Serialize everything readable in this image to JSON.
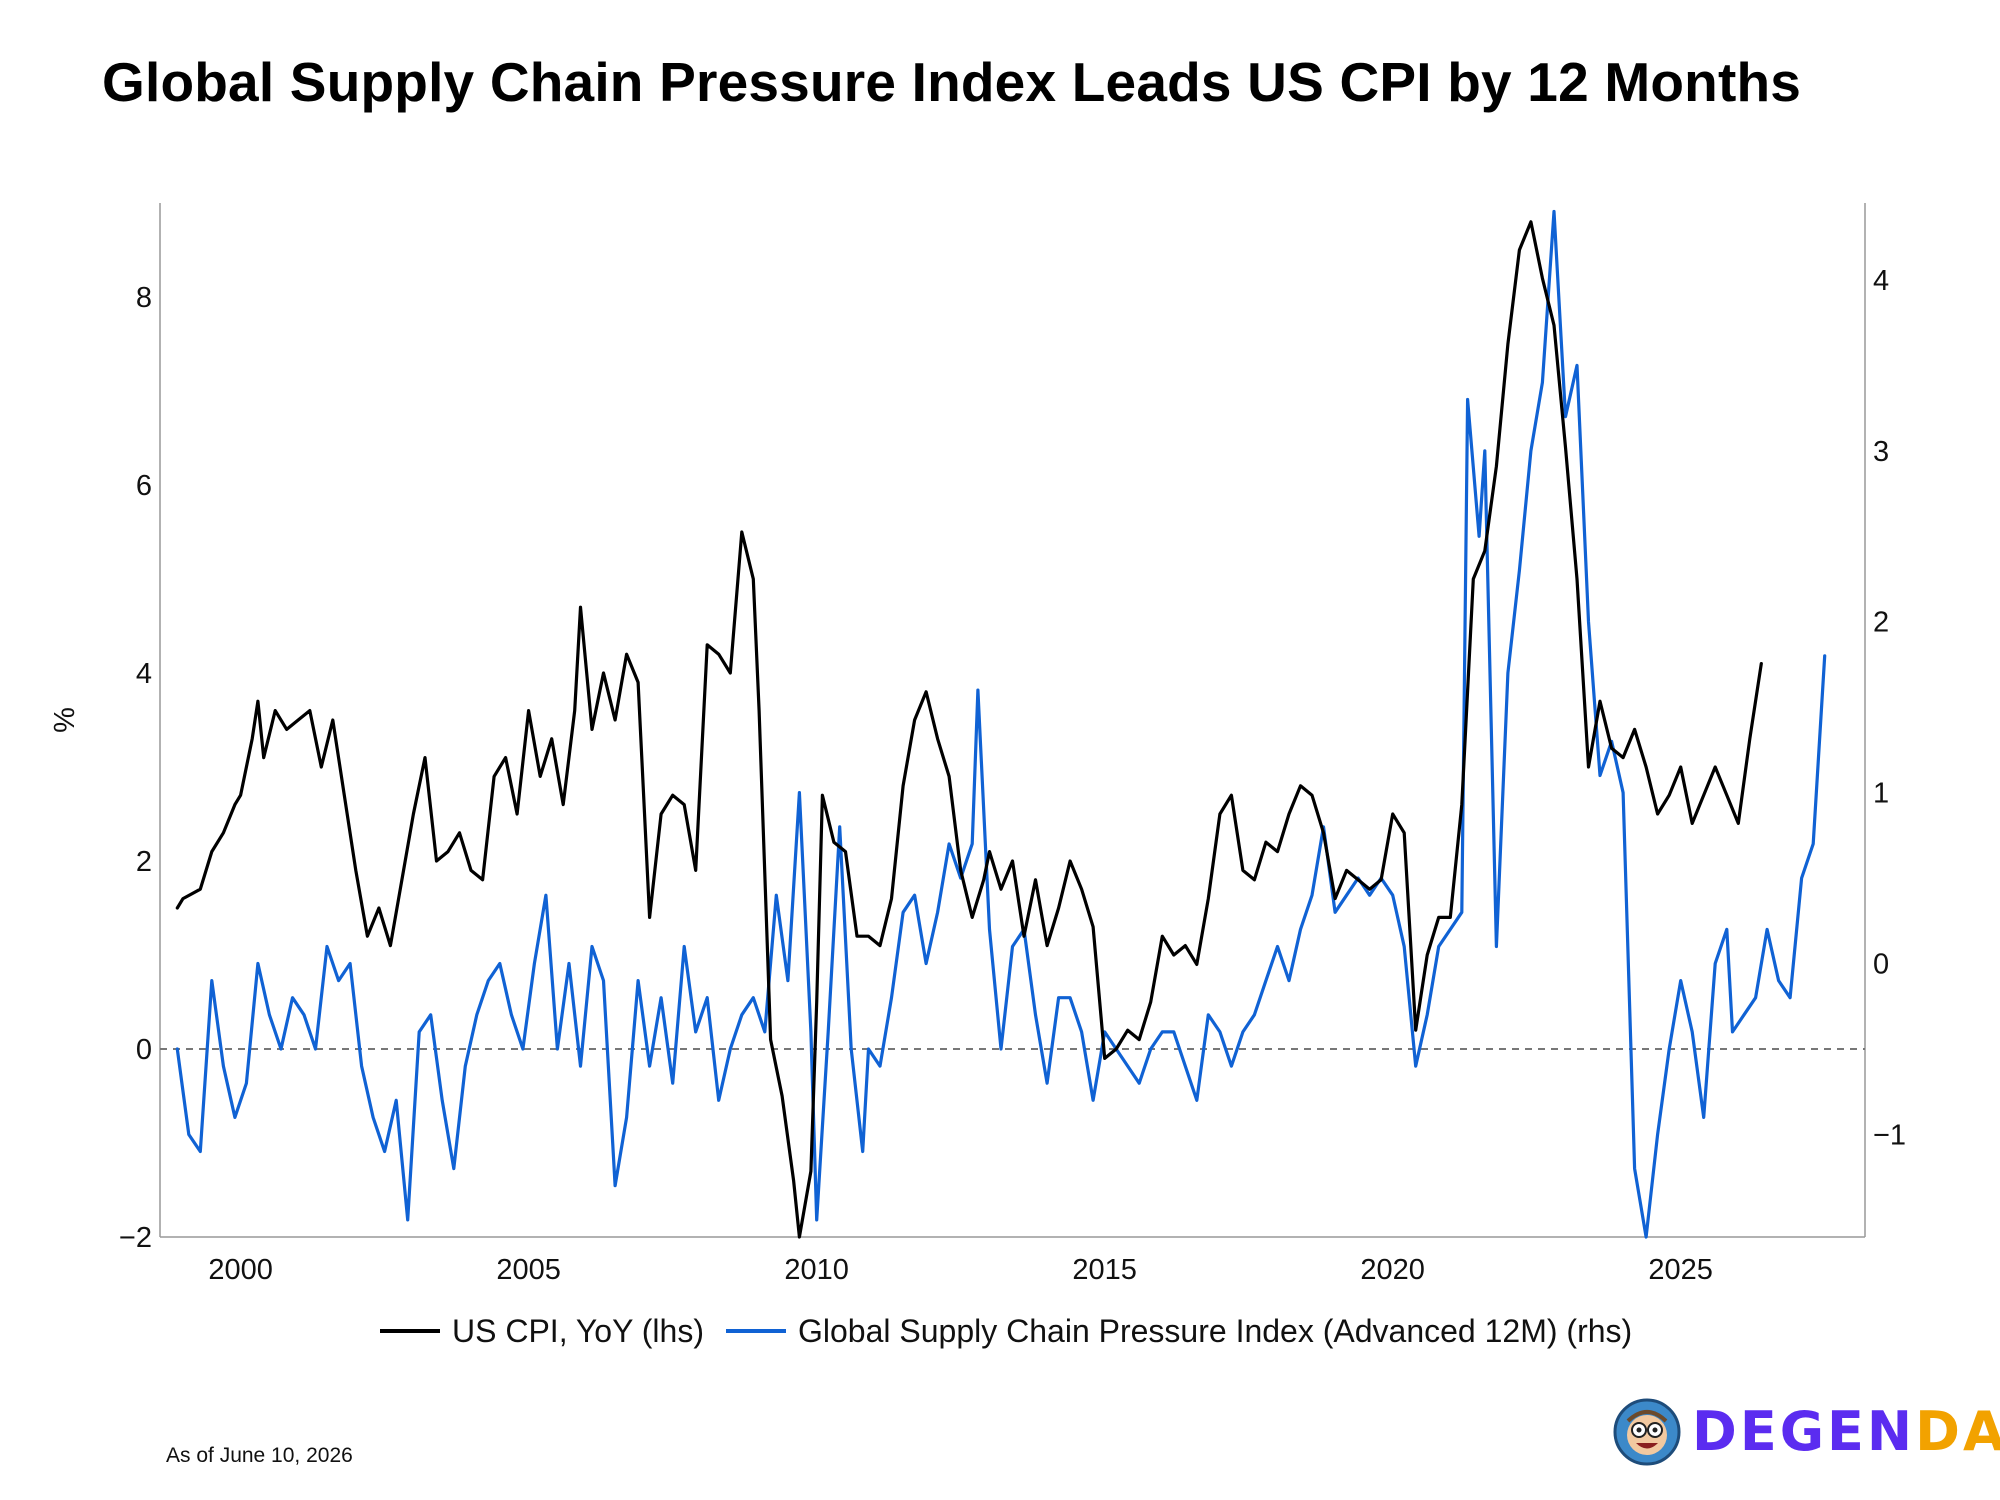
{
  "title": "Global Supply Chain Pressure Index Leads US CPI by 12 Months",
  "footnote": "As of June 10, 2026",
  "brand": {
    "part1": "DEGEN",
    "part2": "DAO!",
    "color1": "#5b2cf0",
    "color2": "#f2a200",
    "icon": "avatar-icon"
  },
  "chart_data": {
    "type": "line",
    "title": "Global Supply Chain Pressure Index Leads US CPI by 12 Months",
    "xlabel": "",
    "ylabel": "%",
    "ylabel_right": "",
    "xlim": [
      1998.6,
      2028.2
    ],
    "ylim": [
      -2,
      9
    ],
    "ylim_right": [
      -1.6,
      4.45
    ],
    "x_ticks": [
      2000,
      2005,
      2010,
      2015,
      2020,
      2025
    ],
    "y_ticks": [
      -2,
      0,
      2,
      4,
      6,
      8
    ],
    "y_ticks_right": [
      -1,
      0,
      1,
      2,
      3,
      4
    ],
    "reference_line": {
      "axis": "left",
      "y": 0,
      "style": "dashed"
    },
    "grid": false,
    "legend_position": "bottom-center",
    "series": [
      {
        "name": "US CPI, YoY (lhs)",
        "axis": "left",
        "color": "#000000",
        "points": [
          [
            1998.9,
            1.5
          ],
          [
            1999.0,
            1.6
          ],
          [
            1999.3,
            1.7
          ],
          [
            1999.5,
            2.1
          ],
          [
            1999.7,
            2.3
          ],
          [
            1999.9,
            2.6
          ],
          [
            2000.0,
            2.7
          ],
          [
            2000.2,
            3.3
          ],
          [
            2000.3,
            3.7
          ],
          [
            2000.4,
            3.1
          ],
          [
            2000.6,
            3.6
          ],
          [
            2000.8,
            3.4
          ],
          [
            2001.0,
            3.5
          ],
          [
            2001.2,
            3.6
          ],
          [
            2001.4,
            3.0
          ],
          [
            2001.6,
            3.5
          ],
          [
            2001.8,
            2.7
          ],
          [
            2002.0,
            1.9
          ],
          [
            2002.2,
            1.2
          ],
          [
            2002.4,
            1.5
          ],
          [
            2002.6,
            1.1
          ],
          [
            2002.8,
            1.8
          ],
          [
            2003.0,
            2.5
          ],
          [
            2003.2,
            3.1
          ],
          [
            2003.4,
            2.0
          ],
          [
            2003.6,
            2.1
          ],
          [
            2003.8,
            2.3
          ],
          [
            2004.0,
            1.9
          ],
          [
            2004.2,
            1.8
          ],
          [
            2004.4,
            2.9
          ],
          [
            2004.6,
            3.1
          ],
          [
            2004.8,
            2.5
          ],
          [
            2005.0,
            3.6
          ],
          [
            2005.2,
            2.9
          ],
          [
            2005.4,
            3.3
          ],
          [
            2005.6,
            2.6
          ],
          [
            2005.8,
            3.6
          ],
          [
            2005.9,
            4.7
          ],
          [
            2006.1,
            3.4
          ],
          [
            2006.3,
            4.0
          ],
          [
            2006.5,
            3.5
          ],
          [
            2006.7,
            4.2
          ],
          [
            2006.9,
            3.9
          ],
          [
            2007.1,
            1.4
          ],
          [
            2007.3,
            2.5
          ],
          [
            2007.5,
            2.7
          ],
          [
            2007.7,
            2.6
          ],
          [
            2007.9,
            1.9
          ],
          [
            2008.1,
            4.3
          ],
          [
            2008.3,
            4.2
          ],
          [
            2008.5,
            4.0
          ],
          [
            2008.7,
            5.5
          ],
          [
            2008.9,
            5.0
          ],
          [
            2009.0,
            3.6
          ],
          [
            2009.2,
            0.1
          ],
          [
            2009.4,
            -0.5
          ],
          [
            2009.6,
            -1.4
          ],
          [
            2009.7,
            -2.0
          ],
          [
            2009.9,
            -1.3
          ],
          [
            2010.0,
            0.5
          ],
          [
            2010.1,
            2.7
          ],
          [
            2010.3,
            2.2
          ],
          [
            2010.5,
            2.1
          ],
          [
            2010.7,
            1.2
          ],
          [
            2010.9,
            1.2
          ],
          [
            2011.1,
            1.1
          ],
          [
            2011.3,
            1.6
          ],
          [
            2011.5,
            2.8
          ],
          [
            2011.7,
            3.5
          ],
          [
            2011.9,
            3.8
          ],
          [
            2012.1,
            3.3
          ],
          [
            2012.3,
            2.9
          ],
          [
            2012.5,
            1.9
          ],
          [
            2012.7,
            1.4
          ],
          [
            2012.9,
            1.8
          ],
          [
            2013.0,
            2.1
          ],
          [
            2013.2,
            1.7
          ],
          [
            2013.4,
            2.0
          ],
          [
            2013.6,
            1.2
          ],
          [
            2013.8,
            1.8
          ],
          [
            2014.0,
            1.1
          ],
          [
            2014.2,
            1.5
          ],
          [
            2014.4,
            2.0
          ],
          [
            2014.6,
            1.7
          ],
          [
            2014.8,
            1.3
          ],
          [
            2015.0,
            -0.1
          ],
          [
            2015.2,
            0.0
          ],
          [
            2015.4,
            0.2
          ],
          [
            2015.6,
            0.1
          ],
          [
            2015.8,
            0.5
          ],
          [
            2016.0,
            1.2
          ],
          [
            2016.2,
            1.0
          ],
          [
            2016.4,
            1.1
          ],
          [
            2016.6,
            0.9
          ],
          [
            2016.8,
            1.6
          ],
          [
            2017.0,
            2.5
          ],
          [
            2017.2,
            2.7
          ],
          [
            2017.4,
            1.9
          ],
          [
            2017.6,
            1.8
          ],
          [
            2017.8,
            2.2
          ],
          [
            2018.0,
            2.1
          ],
          [
            2018.2,
            2.5
          ],
          [
            2018.4,
            2.8
          ],
          [
            2018.6,
            2.7
          ],
          [
            2018.8,
            2.3
          ],
          [
            2019.0,
            1.6
          ],
          [
            2019.2,
            1.9
          ],
          [
            2019.4,
            1.8
          ],
          [
            2019.6,
            1.7
          ],
          [
            2019.8,
            1.8
          ],
          [
            2020.0,
            2.5
          ],
          [
            2020.2,
            2.3
          ],
          [
            2020.4,
            0.2
          ],
          [
            2020.6,
            1.0
          ],
          [
            2020.8,
            1.4
          ],
          [
            2021.0,
            1.4
          ],
          [
            2021.2,
            2.6
          ],
          [
            2021.4,
            5.0
          ],
          [
            2021.6,
            5.3
          ],
          [
            2021.8,
            6.2
          ],
          [
            2022.0,
            7.5
          ],
          [
            2022.2,
            8.5
          ],
          [
            2022.4,
            8.8
          ],
          [
            2022.6,
            8.2
          ],
          [
            2022.8,
            7.7
          ],
          [
            2023.0,
            6.4
          ],
          [
            2023.2,
            5.0
          ],
          [
            2023.4,
            3.0
          ],
          [
            2023.6,
            3.7
          ],
          [
            2023.8,
            3.2
          ],
          [
            2024.0,
            3.1
          ],
          [
            2024.2,
            3.4
          ],
          [
            2024.4,
            3.0
          ],
          [
            2024.6,
            2.5
          ],
          [
            2024.8,
            2.7
          ],
          [
            2025.0,
            3.0
          ],
          [
            2025.2,
            2.4
          ],
          [
            2025.4,
            2.7
          ],
          [
            2025.6,
            3.0
          ],
          [
            2025.8,
            2.7
          ],
          [
            2026.0,
            2.4
          ],
          [
            2026.2,
            3.3
          ],
          [
            2026.4,
            4.1
          ]
        ]
      },
      {
        "name": "Global Supply Chain Pressure Index (Advanced 12M) (rhs)",
        "axis": "right",
        "color": "#1062d4",
        "points": [
          [
            1998.9,
            -0.5
          ],
          [
            1999.1,
            -1.0
          ],
          [
            1999.3,
            -1.1
          ],
          [
            1999.5,
            -0.1
          ],
          [
            1999.7,
            -0.6
          ],
          [
            1999.9,
            -0.9
          ],
          [
            2000.1,
            -0.7
          ],
          [
            2000.3,
            0.0
          ],
          [
            2000.5,
            -0.3
          ],
          [
            2000.7,
            -0.5
          ],
          [
            2000.9,
            -0.2
          ],
          [
            2001.1,
            -0.3
          ],
          [
            2001.3,
            -0.5
          ],
          [
            2001.5,
            0.1
          ],
          [
            2001.7,
            -0.1
          ],
          [
            2001.9,
            0.0
          ],
          [
            2002.1,
            -0.6
          ],
          [
            2002.3,
            -0.9
          ],
          [
            2002.5,
            -1.1
          ],
          [
            2002.7,
            -0.8
          ],
          [
            2002.9,
            -1.5
          ],
          [
            2003.1,
            -0.4
          ],
          [
            2003.3,
            -0.3
          ],
          [
            2003.5,
            -0.8
          ],
          [
            2003.7,
            -1.2
          ],
          [
            2003.9,
            -0.6
          ],
          [
            2004.1,
            -0.3
          ],
          [
            2004.3,
            -0.1
          ],
          [
            2004.5,
            0.0
          ],
          [
            2004.7,
            -0.3
          ],
          [
            2004.9,
            -0.5
          ],
          [
            2005.1,
            0.0
          ],
          [
            2005.3,
            0.4
          ],
          [
            2005.5,
            -0.5
          ],
          [
            2005.7,
            0.0
          ],
          [
            2005.9,
            -0.6
          ],
          [
            2006.1,
            0.1
          ],
          [
            2006.3,
            -0.1
          ],
          [
            2006.5,
            -1.3
          ],
          [
            2006.7,
            -0.9
          ],
          [
            2006.9,
            -0.1
          ],
          [
            2007.1,
            -0.6
          ],
          [
            2007.3,
            -0.2
          ],
          [
            2007.5,
            -0.7
          ],
          [
            2007.7,
            0.1
          ],
          [
            2007.9,
            -0.4
          ],
          [
            2008.1,
            -0.2
          ],
          [
            2008.3,
            -0.8
          ],
          [
            2008.5,
            -0.5
          ],
          [
            2008.7,
            -0.3
          ],
          [
            2008.9,
            -0.2
          ],
          [
            2009.1,
            -0.4
          ],
          [
            2009.3,
            0.4
          ],
          [
            2009.5,
            -0.1
          ],
          [
            2009.7,
            1.0
          ],
          [
            2009.9,
            -0.4
          ],
          [
            2010.0,
            -1.5
          ],
          [
            2010.2,
            -0.4
          ],
          [
            2010.4,
            0.8
          ],
          [
            2010.6,
            -0.5
          ],
          [
            2010.8,
            -1.1
          ],
          [
            2010.9,
            -0.5
          ],
          [
            2011.1,
            -0.6
          ],
          [
            2011.3,
            -0.2
          ],
          [
            2011.5,
            0.3
          ],
          [
            2011.7,
            0.4
          ],
          [
            2011.9,
            0.0
          ],
          [
            2012.1,
            0.3
          ],
          [
            2012.3,
            0.7
          ],
          [
            2012.5,
            0.5
          ],
          [
            2012.7,
            0.7
          ],
          [
            2012.8,
            1.6
          ],
          [
            2013.0,
            0.2
          ],
          [
            2013.2,
            -0.5
          ],
          [
            2013.4,
            0.1
          ],
          [
            2013.6,
            0.2
          ],
          [
            2013.8,
            -0.3
          ],
          [
            2014.0,
            -0.7
          ],
          [
            2014.2,
            -0.2
          ],
          [
            2014.4,
            -0.2
          ],
          [
            2014.6,
            -0.4
          ],
          [
            2014.8,
            -0.8
          ],
          [
            2015.0,
            -0.4
          ],
          [
            2015.2,
            -0.5
          ],
          [
            2015.4,
            -0.6
          ],
          [
            2015.6,
            -0.7
          ],
          [
            2015.8,
            -0.5
          ],
          [
            2016.0,
            -0.4
          ],
          [
            2016.2,
            -0.4
          ],
          [
            2016.4,
            -0.6
          ],
          [
            2016.6,
            -0.8
          ],
          [
            2016.8,
            -0.3
          ],
          [
            2017.0,
            -0.4
          ],
          [
            2017.2,
            -0.6
          ],
          [
            2017.4,
            -0.4
          ],
          [
            2017.6,
            -0.3
          ],
          [
            2017.8,
            -0.1
          ],
          [
            2018.0,
            0.1
          ],
          [
            2018.2,
            -0.1
          ],
          [
            2018.4,
            0.2
          ],
          [
            2018.6,
            0.4
          ],
          [
            2018.8,
            0.8
          ],
          [
            2019.0,
            0.3
          ],
          [
            2019.2,
            0.4
          ],
          [
            2019.4,
            0.5
          ],
          [
            2019.6,
            0.4
          ],
          [
            2019.8,
            0.5
          ],
          [
            2020.0,
            0.4
          ],
          [
            2020.2,
            0.1
          ],
          [
            2020.4,
            -0.6
          ],
          [
            2020.6,
            -0.3
          ],
          [
            2020.8,
            0.1
          ],
          [
            2021.0,
            0.2
          ],
          [
            2021.2,
            0.3
          ],
          [
            2021.3,
            3.3
          ],
          [
            2021.5,
            2.5
          ],
          [
            2021.6,
            3.0
          ],
          [
            2021.8,
            0.1
          ],
          [
            2022.0,
            1.7
          ],
          [
            2022.2,
            2.3
          ],
          [
            2022.4,
            3.0
          ],
          [
            2022.6,
            3.4
          ],
          [
            2022.8,
            4.4
          ],
          [
            2023.0,
            3.2
          ],
          [
            2023.2,
            3.5
          ],
          [
            2023.4,
            2.0
          ],
          [
            2023.6,
            1.1
          ],
          [
            2023.8,
            1.3
          ],
          [
            2024.0,
            1.0
          ],
          [
            2024.2,
            -1.2
          ],
          [
            2024.4,
            -1.6
          ],
          [
            2024.6,
            -1.0
          ],
          [
            2024.8,
            -0.5
          ],
          [
            2025.0,
            -0.1
          ],
          [
            2025.2,
            -0.4
          ],
          [
            2025.4,
            -0.9
          ],
          [
            2025.6,
            0.0
          ],
          [
            2025.8,
            0.2
          ],
          [
            2025.9,
            -0.4
          ],
          [
            2026.1,
            -0.3
          ],
          [
            2026.3,
            -0.2
          ],
          [
            2026.5,
            0.2
          ],
          [
            2026.7,
            -0.1
          ],
          [
            2026.9,
            -0.2
          ],
          [
            2027.1,
            0.5
          ],
          [
            2027.3,
            0.7
          ],
          [
            2027.5,
            1.8
          ]
        ]
      }
    ]
  }
}
